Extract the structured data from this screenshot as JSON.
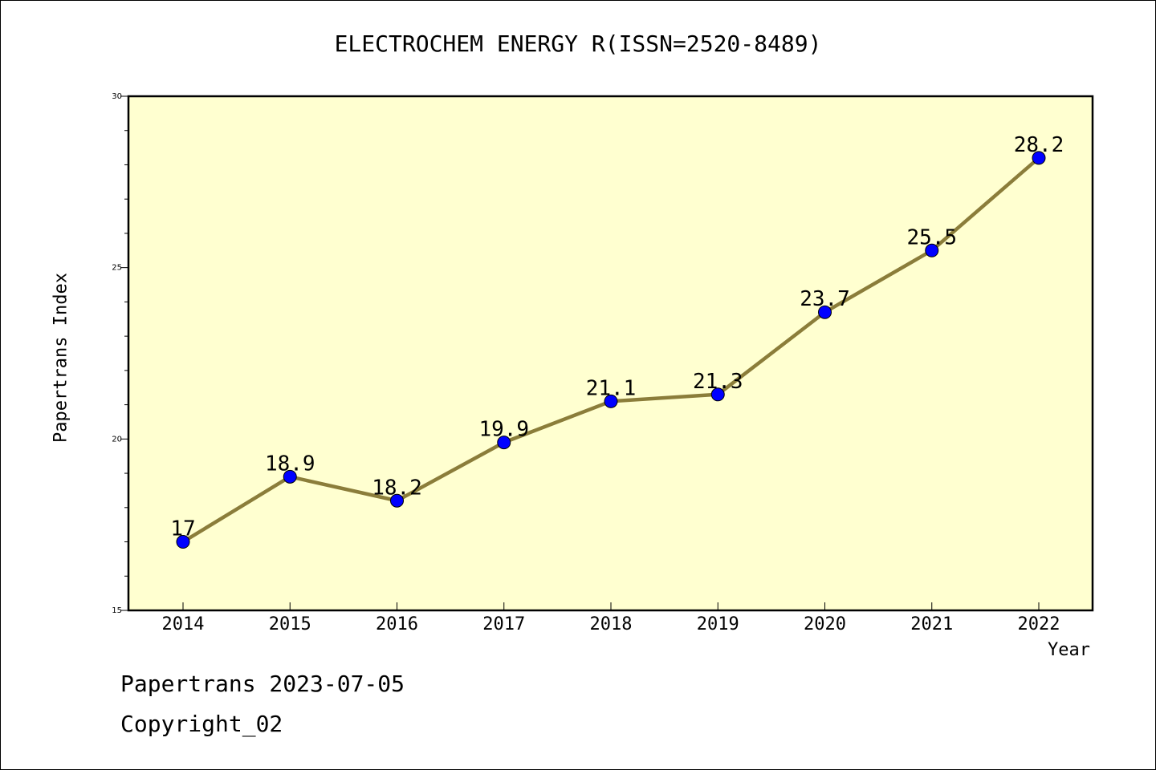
{
  "chart_data": {
    "type": "line",
    "title": "ELECTROCHEM ENERGY R(ISSN=2520-8489)",
    "xlabel": "Year",
    "ylabel": "Papertrans Index",
    "x": [
      "2014",
      "2015",
      "2016",
      "2017",
      "2018",
      "2019",
      "2020",
      "2021",
      "2022"
    ],
    "series": [
      {
        "values": [
          17,
          18.9,
          18.2,
          19.9,
          21.1,
          21.3,
          23.7,
          25.5,
          28.2
        ],
        "labels": [
          "17",
          "18.9",
          "18.2",
          "19.9",
          "21.1",
          "21.3",
          "23.7",
          "25.5",
          "28.2"
        ],
        "line_color": "#8b7d3a",
        "marker_color": "#0000ff"
      }
    ],
    "ylim": [
      15,
      30
    ],
    "yticks": [
      15,
      20,
      25,
      30
    ],
    "plot_background": "#ffffd0",
    "grid": false,
    "legend": "none"
  },
  "footer": {
    "line1": "Papertrans 2023-07-05",
    "line2": "Copyright_02"
  }
}
